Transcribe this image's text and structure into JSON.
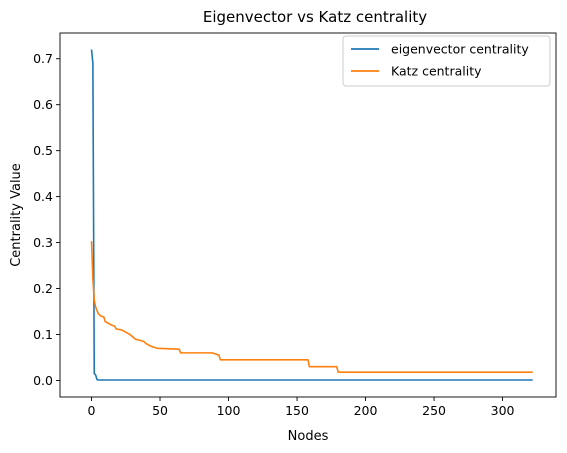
{
  "chart_data": {
    "type": "line",
    "title": "Eigenvector vs Katz centrality",
    "xlabel": "Nodes",
    "ylabel": "Centrality Value",
    "xlim": [
      -23,
      339
    ],
    "ylim": [
      -0.036,
      0.756
    ],
    "xticks": [
      0,
      50,
      100,
      150,
      200,
      250,
      300
    ],
    "yticks": [
      0.0,
      0.1,
      0.2,
      0.3,
      0.4,
      0.5,
      0.6,
      0.7
    ],
    "grid": false,
    "legend_position": "top-right",
    "series": [
      {
        "name": "eigenvector centrality",
        "color": "#1f77b4",
        "points": [
          [
            0,
            0.72
          ],
          [
            1,
            0.69
          ],
          [
            2,
            0.015
          ],
          [
            3,
            0.012
          ],
          [
            4,
            0.002
          ],
          [
            5,
            0.001
          ],
          [
            322,
            0.001
          ]
        ]
      },
      {
        "name": "Katz centrality",
        "color": "#ff7f0e",
        "points": [
          [
            0,
            0.303
          ],
          [
            1,
            0.22
          ],
          [
            2,
            0.175
          ],
          [
            3,
            0.16
          ],
          [
            4,
            0.152
          ],
          [
            5,
            0.145
          ],
          [
            7,
            0.14
          ],
          [
            9,
            0.138
          ],
          [
            10,
            0.128
          ],
          [
            12,
            0.125
          ],
          [
            15,
            0.12
          ],
          [
            17,
            0.118
          ],
          [
            18,
            0.112
          ],
          [
            22,
            0.11
          ],
          [
            25,
            0.105
          ],
          [
            28,
            0.1
          ],
          [
            30,
            0.095
          ],
          [
            32,
            0.09
          ],
          [
            38,
            0.085
          ],
          [
            40,
            0.08
          ],
          [
            43,
            0.075
          ],
          [
            46,
            0.072
          ],
          [
            48,
            0.07
          ],
          [
            64,
            0.068
          ],
          [
            65,
            0.06
          ],
          [
            88,
            0.06
          ],
          [
            90,
            0.058
          ],
          [
            93,
            0.055
          ],
          [
            94,
            0.045
          ],
          [
            158,
            0.045
          ],
          [
            159,
            0.03
          ],
          [
            179,
            0.03
          ],
          [
            180,
            0.018
          ],
          [
            322,
            0.018
          ]
        ]
      }
    ]
  }
}
